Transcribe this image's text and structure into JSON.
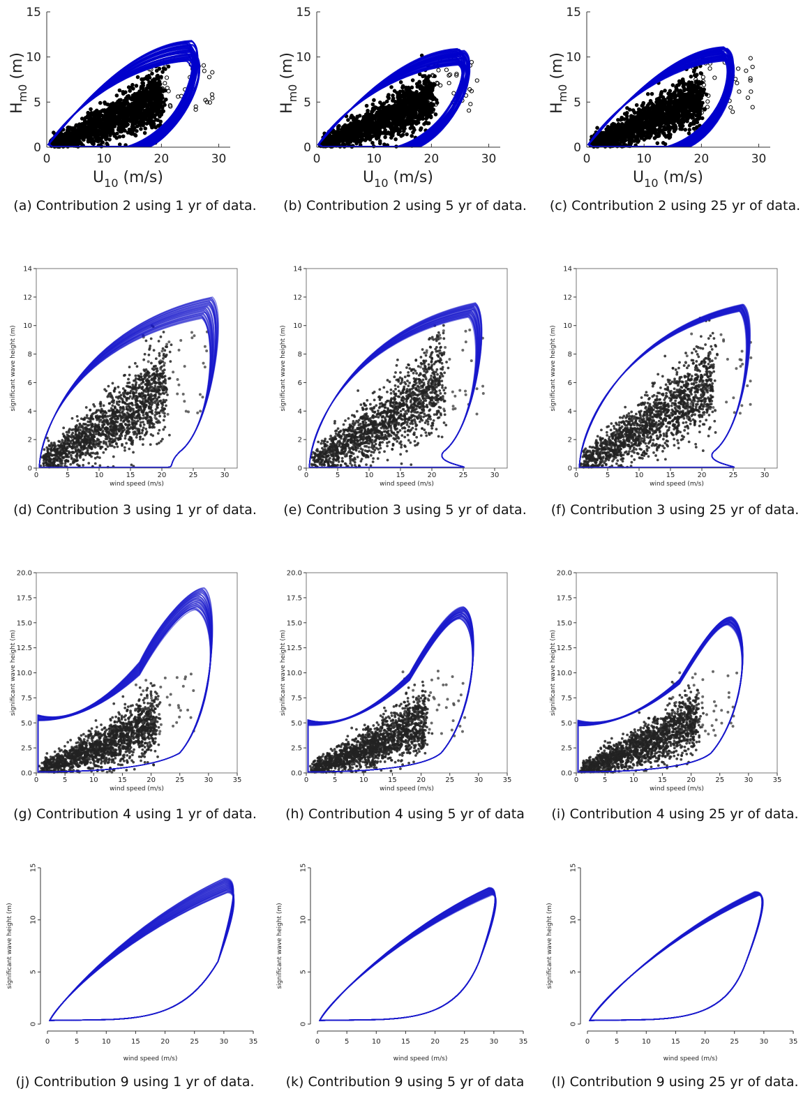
{
  "chart_data": [
    {
      "type": "scatter",
      "panel": "a",
      "style": "A",
      "caption": "(a) Contribution 2 using 1 yr of data.",
      "xlabel": {
        "main": "U",
        "sub": "10",
        "suffix": " (m/s)"
      },
      "ylabel": {
        "main": "H",
        "sub": "m0",
        "suffix": " (m)"
      },
      "xlim": [
        0,
        32
      ],
      "ylim": [
        0,
        15
      ],
      "xticks": [
        0,
        10,
        20,
        30
      ],
      "yticks": [
        0,
        5,
        10,
        15
      ],
      "ytick_labels": [
        "0",
        "5",
        "10",
        "15"
      ],
      "data_color": "#000000",
      "contour_color": "#0000cc",
      "contour": {
        "inner_peak_x": 21,
        "inner_peak_y": 7.8,
        "outer_peak_x": 25,
        "outer_peak_y": 11.5,
        "band": 0.9,
        "tail_x": 14
      },
      "max_x": 29,
      "max_y": 10.5
    },
    {
      "type": "scatter",
      "panel": "b",
      "style": "A",
      "caption": "(b) Contribution 2 using 5 yr of data.",
      "xlabel": {
        "main": "U",
        "sub": "10",
        "suffix": " (m/s)"
      },
      "ylabel": {
        "main": "H",
        "sub": "m0",
        "suffix": " (m)"
      },
      "xlim": [
        0,
        32
      ],
      "ylim": [
        0,
        15
      ],
      "xticks": [
        0,
        10,
        20,
        30
      ],
      "yticks": [
        0,
        5,
        10,
        15
      ],
      "ytick_labels": [
        "0",
        "5",
        "10",
        "15"
      ],
      "data_color": "#000000",
      "contour_color": "#0000cc",
      "contour": {
        "inner_peak_x": 21,
        "inner_peak_y": 7.8,
        "outer_peak_x": 25,
        "outer_peak_y": 10.6,
        "band": 0.7,
        "tail_x": 14
      },
      "max_x": 29,
      "max_y": 10.5
    },
    {
      "type": "scatter",
      "panel": "c",
      "style": "A",
      "caption": "(c) Contribution 2 using 25 yr of data.",
      "xlabel": {
        "main": "U",
        "sub": "10",
        "suffix": " (m/s)"
      },
      "ylabel": {
        "main": "H",
        "sub": "m0",
        "suffix": " (m)"
      },
      "xlim": [
        0,
        32
      ],
      "ylim": [
        0,
        15
      ],
      "xticks": [
        0,
        10,
        20,
        30
      ],
      "yticks": [
        0,
        5,
        10,
        15
      ],
      "ytick_labels": [
        "0",
        "5",
        "10",
        "15"
      ],
      "data_color": "#000000",
      "contour_color": "#0000cc",
      "contour": {
        "inner_peak_x": 21,
        "inner_peak_y": 7.8,
        "outer_peak_x": 24,
        "outer_peak_y": 10.8,
        "band": 0.6,
        "tail_x": 14
      },
      "max_x": 29,
      "max_y": 10.5
    },
    {
      "type": "scatter",
      "panel": "d",
      "style": "B",
      "caption": "(d) Contribution 3 using 1 yr of data.",
      "xlabel": {
        "main": "wind speed (m/s)"
      },
      "ylabel": {
        "main": "significant wave height (m)"
      },
      "xlim": [
        0,
        32
      ],
      "ylim": [
        0,
        14
      ],
      "xticks": [
        0,
        5,
        10,
        15,
        20,
        25,
        30
      ],
      "yticks": [
        0,
        2,
        4,
        6,
        8,
        10,
        12,
        14
      ],
      "ytick_labels": [
        "0",
        "2",
        "4",
        "6",
        "8",
        "10",
        "12",
        "14"
      ],
      "data_color": "#222222",
      "contour_color": "#1a1acc",
      "contour": {
        "peak_x": 28,
        "peak_y": 12.0,
        "band": 1.5,
        "right_x": 27,
        "bottom_tail_x": 22
      },
      "max_x": 27.5,
      "max_y": 10.0
    },
    {
      "type": "scatter",
      "panel": "e",
      "style": "B",
      "caption": "(e) Contribution 3 using 5 yr of data.",
      "xlabel": {
        "main": "wind speed (m/s)"
      },
      "ylabel": {
        "main": "significant wave height (m)"
      },
      "xlim": [
        0,
        32
      ],
      "ylim": [
        0,
        14
      ],
      "xticks": [
        0,
        5,
        10,
        15,
        20,
        25,
        30
      ],
      "yticks": [
        0,
        2,
        4,
        6,
        8,
        10,
        12,
        14
      ],
      "ytick_labels": [
        "0",
        "2",
        "4",
        "6",
        "8",
        "10",
        "12",
        "14"
      ],
      "data_color": "#222222",
      "contour_color": "#1a1acc",
      "contour": {
        "peak_x": 27,
        "peak_y": 11.6,
        "band": 1.0,
        "right_x": 26,
        "bottom_tail_x": 26
      },
      "max_x": 29,
      "max_y": 10.0
    },
    {
      "type": "scatter",
      "panel": "f",
      "style": "B",
      "caption": "(f) Contribution 3 using 25 yr of data.",
      "xlabel": {
        "main": "wind speed (m/s)"
      },
      "ylabel": {
        "main": "significant wave height (m)"
      },
      "xlim": [
        0,
        32
      ],
      "ylim": [
        0,
        14
      ],
      "xticks": [
        0,
        5,
        10,
        15,
        20,
        25,
        30
      ],
      "yticks": [
        0,
        2,
        4,
        6,
        8,
        10,
        12,
        14
      ],
      "ytick_labels": [
        "0",
        "2",
        "4",
        "6",
        "8",
        "10",
        "12",
        "14"
      ],
      "data_color": "#222222",
      "contour_color": "#1a1acc",
      "contour": {
        "peak_x": 26.5,
        "peak_y": 11.5,
        "band": 0.5,
        "right_x": 26,
        "bottom_tail_x": 26
      },
      "max_x": 29,
      "max_y": 10.0
    },
    {
      "type": "scatter",
      "panel": "g",
      "style": "C",
      "caption": "(g) Contribution 4 using 1 yr of data.",
      "xlabel": {
        "main": "wind speed (m/s)"
      },
      "ylabel": {
        "main": "significant wave height (m)"
      },
      "xlim": [
        0,
        35
      ],
      "ylim": [
        0,
        20
      ],
      "xticks": [
        0,
        5,
        10,
        15,
        20,
        25,
        30,
        35
      ],
      "yticks": [
        0,
        2.5,
        5,
        7.5,
        10,
        12.5,
        15,
        17.5,
        20
      ],
      "ytick_labels": [
        "0.0",
        "2.5",
        "5.0",
        "7.5",
        "10.0",
        "12.5",
        "15.0",
        "17.5",
        "20.0"
      ],
      "data_color": "#222222",
      "contour_color": "#1a1acc",
      "contour": {
        "peak_x": 29,
        "peak_y": 18.5,
        "band": 2.2,
        "left_y": 5.5,
        "right_x": 31
      },
      "max_x": 28,
      "max_y": 10.5
    },
    {
      "type": "scatter",
      "panel": "h",
      "style": "C",
      "caption": "(h) Contribution 4 using 5 yr of data",
      "xlabel": {
        "main": "wind speed (m/s)"
      },
      "ylabel": {
        "main": "significant wave height (m)"
      },
      "xlim": [
        0,
        35
      ],
      "ylim": [
        0,
        20
      ],
      "xticks": [
        0,
        5,
        10,
        15,
        20,
        25,
        30,
        35
      ],
      "yticks": [
        0,
        2.5,
        5,
        7.5,
        10,
        12.5,
        15,
        17.5,
        20
      ],
      "ytick_labels": [
        "0.0",
        "2.5",
        "5.0",
        "7.5",
        "10.0",
        "12.5",
        "15.0",
        "17.5",
        "20.0"
      ],
      "data_color": "#222222",
      "contour_color": "#1a1acc",
      "contour": {
        "peak_x": 27.5,
        "peak_y": 16.6,
        "band": 1.2,
        "left_y": 5.0,
        "right_x": 29.5
      },
      "max_x": 28,
      "max_y": 10.5
    },
    {
      "type": "scatter",
      "panel": "i",
      "style": "C",
      "caption": "(i) Contribution 4 using 25 yr of data.",
      "xlabel": {
        "main": "wind speed (m/s)"
      },
      "ylabel": {
        "main": "significant wave height (m)"
      },
      "xlim": [
        0,
        35
      ],
      "ylim": [
        0,
        20
      ],
      "xticks": [
        0,
        5,
        10,
        15,
        20,
        25,
        30,
        35
      ],
      "yticks": [
        0,
        2.5,
        5,
        7.5,
        10,
        12.5,
        15,
        17.5,
        20
      ],
      "ytick_labels": [
        "0.0",
        "2.5",
        "5.0",
        "7.5",
        "10.0",
        "12.5",
        "15.0",
        "17.5",
        "20.0"
      ],
      "data_color": "#222222",
      "contour_color": "#1a1acc",
      "contour": {
        "peak_x": 27,
        "peak_y": 15.6,
        "band": 0.8,
        "left_y": 5.0,
        "right_x": 29.5
      },
      "max_x": 28,
      "max_y": 10.5
    },
    {
      "type": "line",
      "panel": "j",
      "style": "D",
      "caption": "(j) Contribution 9 using 1 yr of data.",
      "xlabel": {
        "main": "wind speed (m/s)"
      },
      "ylabel": {
        "main": "significant wave height (m)"
      },
      "xlim": [
        0,
        35
      ],
      "ylim": [
        0,
        15
      ],
      "xticks": [
        0,
        5,
        10,
        15,
        20,
        25,
        30,
        35
      ],
      "yticks": [
        0,
        5,
        10,
        15
      ],
      "ytick_labels": [
        "0",
        "5",
        "10",
        "15"
      ],
      "data_color": "#222222",
      "contour_color": "#1a1acc",
      "contour": {
        "peak_x": 31,
        "peak_y": 14.0,
        "band": 1.4,
        "right_x": 32
      },
      "max_x": 32,
      "max_y": 14
    },
    {
      "type": "line",
      "panel": "k",
      "style": "D",
      "caption": "(k) Contribution 9 using 5 yr of data",
      "xlabel": {
        "main": "wind speed (m/s)"
      },
      "ylabel": {
        "main": "significant wave height (m)"
      },
      "xlim": [
        0,
        35
      ],
      "ylim": [
        0,
        15
      ],
      "xticks": [
        0,
        5,
        10,
        15,
        20,
        25,
        30,
        35
      ],
      "yticks": [
        0,
        5,
        10,
        15
      ],
      "ytick_labels": [
        "0",
        "5",
        "10",
        "15"
      ],
      "data_color": "#222222",
      "contour_color": "#1a1acc",
      "contour": {
        "peak_x": 30,
        "peak_y": 13.1,
        "band": 0.7,
        "right_x": 30.5
      },
      "max_x": 30.5,
      "max_y": 13.2
    },
    {
      "type": "line",
      "panel": "l",
      "style": "D",
      "caption": "(l) Contribution 9 using 25 yr of data.",
      "xlabel": {
        "main": "wind speed (m/s)"
      },
      "ylabel": {
        "main": "significant wave height (m)"
      },
      "xlim": [
        0,
        35
      ],
      "ylim": [
        0,
        15
      ],
      "xticks": [
        0,
        5,
        10,
        15,
        20,
        25,
        30,
        35
      ],
      "yticks": [
        0,
        5,
        10,
        15
      ],
      "ytick_labels": [
        "0",
        "5",
        "10",
        "15"
      ],
      "data_color": "#222222",
      "contour_color": "#1a1acc",
      "contour": {
        "peak_x": 29.5,
        "peak_y": 12.7,
        "band": 0.35,
        "right_x": 30
      },
      "max_x": 30,
      "max_y": 12.8
    }
  ]
}
